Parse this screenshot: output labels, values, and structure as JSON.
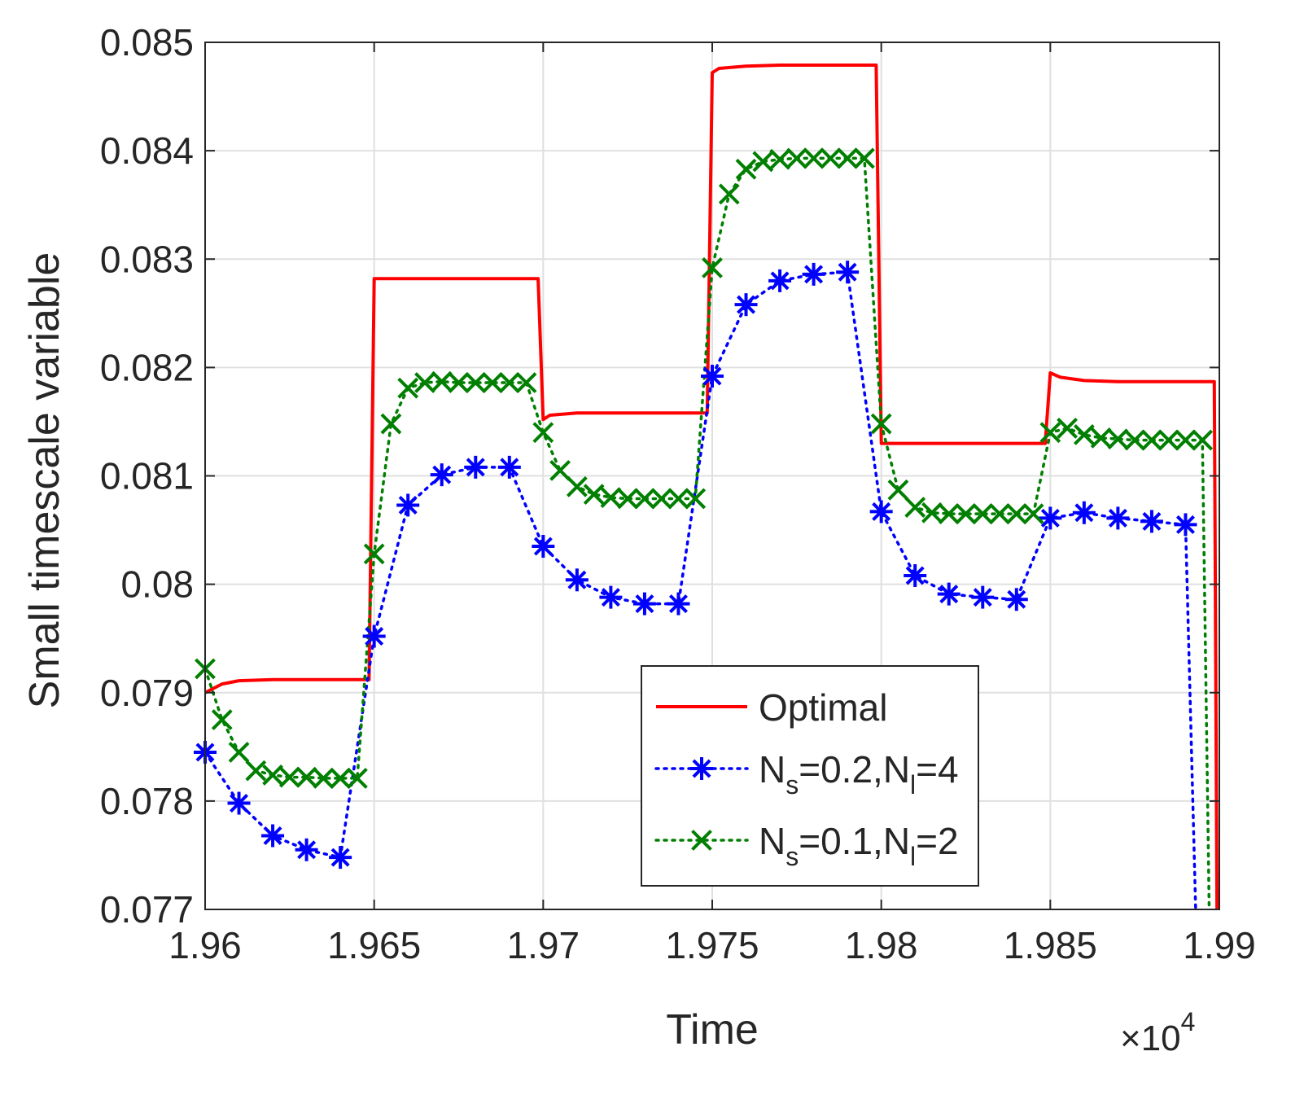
{
  "chart_data": {
    "type": "line",
    "xlabel": "Time",
    "ylabel": "Small timescale variable",
    "x_exponent_label": "×10",
    "x_exponent_power": "4",
    "xlim": [
      19600,
      19900
    ],
    "ylim": [
      0.077,
      0.085
    ],
    "grid": true,
    "legend_position": "lower-right",
    "x_ticks": [
      19600,
      19650,
      19700,
      19750,
      19800,
      19850,
      19900
    ],
    "x_tick_labels": [
      "1.96",
      "1.965",
      "1.97",
      "1.975",
      "1.98",
      "1.985",
      "1.99"
    ],
    "y_ticks": [
      0.077,
      0.078,
      0.079,
      0.08,
      0.081,
      0.082,
      0.083,
      0.084,
      0.085
    ],
    "y_tick_labels": [
      "0.077",
      "0.078",
      "0.079",
      "0.08",
      "0.081",
      "0.082",
      "0.083",
      "0.084",
      "0.085"
    ],
    "series": [
      {
        "name": "Optimal",
        "legend": {
          "base": "Optimal",
          "parts": []
        },
        "color": "#ff0000",
        "line": "solid",
        "marker": "none",
        "x": [
          19600,
          19605,
          19610,
          19620,
          19630,
          19640,
          19648.5,
          19650,
          19660,
          19670,
          19680,
          19690,
          19698.5,
          19700,
          19702,
          19710,
          19720,
          19730,
          19740,
          19748.5,
          19750,
          19752,
          19760,
          19770,
          19780,
          19790,
          19798.5,
          19800,
          19810,
          19820,
          19830,
          19840,
          19848.5,
          19850,
          19853,
          19860,
          19870,
          19880,
          19890,
          19898.5,
          19899.3
        ],
        "y": [
          0.079,
          0.07908,
          0.07911,
          0.07912,
          0.07912,
          0.07912,
          0.07912,
          0.08282,
          0.08282,
          0.08282,
          0.08282,
          0.08282,
          0.08282,
          0.08152,
          0.08156,
          0.08158,
          0.08158,
          0.08158,
          0.08158,
          0.08158,
          0.08472,
          0.08476,
          0.08478,
          0.08479,
          0.08479,
          0.08479,
          0.08479,
          0.0813,
          0.0813,
          0.0813,
          0.0813,
          0.0813,
          0.0813,
          0.08195,
          0.08191,
          0.08188,
          0.08187,
          0.08187,
          0.08187,
          0.08187,
          0.077
        ]
      },
      {
        "name": "Ns=0.2,Nl=4",
        "legend": {
          "base": "N",
          "parts": [
            {
              "sub": "s",
              "text": "=0.2,N"
            },
            {
              "sub": "l",
              "text": "=4"
            }
          ]
        },
        "color": "#0000ff",
        "line": "dotted",
        "marker": "asterisk",
        "x": [
          19600,
          19610,
          19620,
          19630,
          19640,
          19650,
          19660,
          19670,
          19680,
          19690,
          19700,
          19710,
          19720,
          19730,
          19740,
          19750,
          19760,
          19770,
          19780,
          19790,
          19800,
          19810,
          19820,
          19830,
          19840,
          19850,
          19860,
          19870,
          19880,
          19890,
          19893
        ],
        "y": [
          0.07845,
          0.07798,
          0.07768,
          0.07755,
          0.07748,
          0.07952,
          0.08073,
          0.08101,
          0.08108,
          0.08108,
          0.08035,
          0.08004,
          0.07988,
          0.07982,
          0.07982,
          0.08192,
          0.08258,
          0.0828,
          0.08286,
          0.08288,
          0.08067,
          0.08008,
          0.07991,
          0.07988,
          0.07986,
          0.08061,
          0.08066,
          0.08061,
          0.08058,
          0.08055,
          0.077
        ]
      },
      {
        "name": "Ns=0.1,Nl=2",
        "legend": {
          "base": "N",
          "parts": [
            {
              "sub": "s",
              "text": "=0.1,N"
            },
            {
              "sub": "l",
              "text": "=2"
            }
          ]
        },
        "color": "#007f00",
        "line": "dotted",
        "marker": "x",
        "x": [
          19600,
          19605,
          19610,
          19615,
          19620,
          19625,
          19630,
          19635,
          19640,
          19645,
          19650,
          19655,
          19660,
          19665,
          19670,
          19675,
          19680,
          19685,
          19690,
          19695,
          19700,
          19705,
          19710,
          19715,
          19720,
          19725,
          19730,
          19735,
          19740,
          19745,
          19750,
          19755,
          19760,
          19765,
          19770,
          19775,
          19780,
          19785,
          19790,
          19795,
          19800,
          19805,
          19810,
          19815,
          19820,
          19825,
          19830,
          19835,
          19840,
          19845,
          19850,
          19855,
          19860,
          19865,
          19870,
          19875,
          19880,
          19885,
          19890,
          19895,
          19897
        ],
        "y": [
          0.07922,
          0.07875,
          0.07845,
          0.07828,
          0.07824,
          0.07822,
          0.07822,
          0.07821,
          0.07821,
          0.07821,
          0.08028,
          0.08148,
          0.08181,
          0.08186,
          0.08187,
          0.08186,
          0.08186,
          0.08186,
          0.08186,
          0.08186,
          0.0814,
          0.08105,
          0.0809,
          0.08083,
          0.0808,
          0.08079,
          0.08079,
          0.08079,
          0.08079,
          0.08079,
          0.08292,
          0.0836,
          0.08383,
          0.0839,
          0.08392,
          0.08393,
          0.08393,
          0.08393,
          0.08393,
          0.08393,
          0.08148,
          0.08087,
          0.08071,
          0.08066,
          0.08065,
          0.08065,
          0.08065,
          0.08065,
          0.08065,
          0.08065,
          0.0814,
          0.08144,
          0.08138,
          0.08135,
          0.08134,
          0.08133,
          0.08133,
          0.08133,
          0.08133,
          0.08133,
          0.077
        ]
      }
    ]
  }
}
